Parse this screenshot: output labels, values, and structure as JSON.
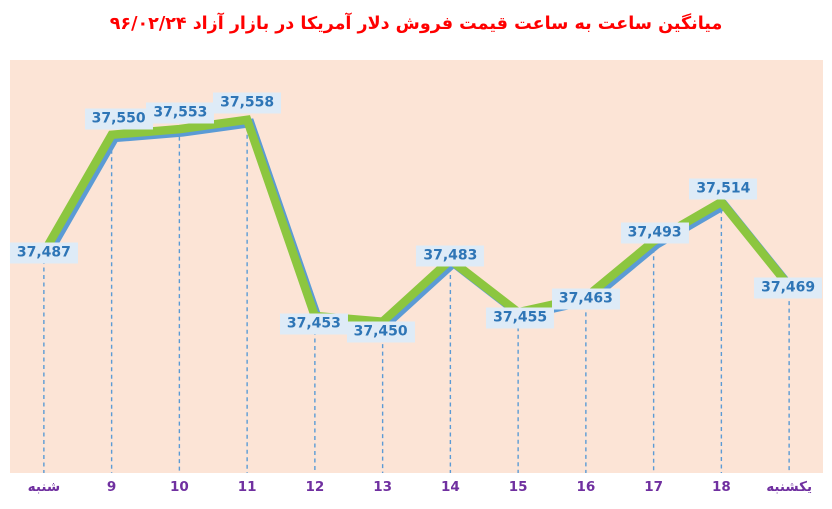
{
  "colors": {
    "background": "#FFFFFF",
    "title": "#FF0000",
    "plot_bg": "#FCE4D6",
    "line_green": "#8CC63F",
    "line_shadow_blue": "#5B9BD5",
    "droplines": "#5B9BD5",
    "label_text": "#2E75B6",
    "label_bg": "#DEEBF7",
    "axis_label": "#7030A0"
  },
  "chart_data": {
    "type": "line",
    "title": "میانگین ساعت به ساعت قیمت فروش دلار آمریکا در بازار آزاد ۹۶/۰۲/۲۴",
    "categories": [
      "شنبه",
      "9",
      "10",
      "11",
      "12",
      "13",
      "14",
      "15",
      "16",
      "17",
      "18",
      "یکشنبه"
    ],
    "values": [
      37487,
      37550,
      37553,
      37558,
      37453,
      37450,
      37483,
      37455,
      37463,
      37493,
      37514,
      37469
    ],
    "value_labels": [
      "37,487",
      "37,550",
      "37,553",
      "37,558",
      "37,453",
      "37,450",
      "37,483",
      "37,455",
      "37,463",
      "37,493",
      "37,514",
      "37,469"
    ],
    "label_placements": [
      "center",
      "above",
      "above",
      "above",
      "below",
      "below",
      "above",
      "below",
      "below",
      "above",
      "above",
      "center"
    ],
    "xlabel": "",
    "ylabel": "",
    "ylim": [
      37369,
      37590
    ],
    "grid": false,
    "legend": false,
    "droplines": true,
    "y_axis_visible": false,
    "style_note": "thick green line with blue drop-shadow line, dashed blue drop lines to x-axis, data labels in light-blue boxes"
  }
}
